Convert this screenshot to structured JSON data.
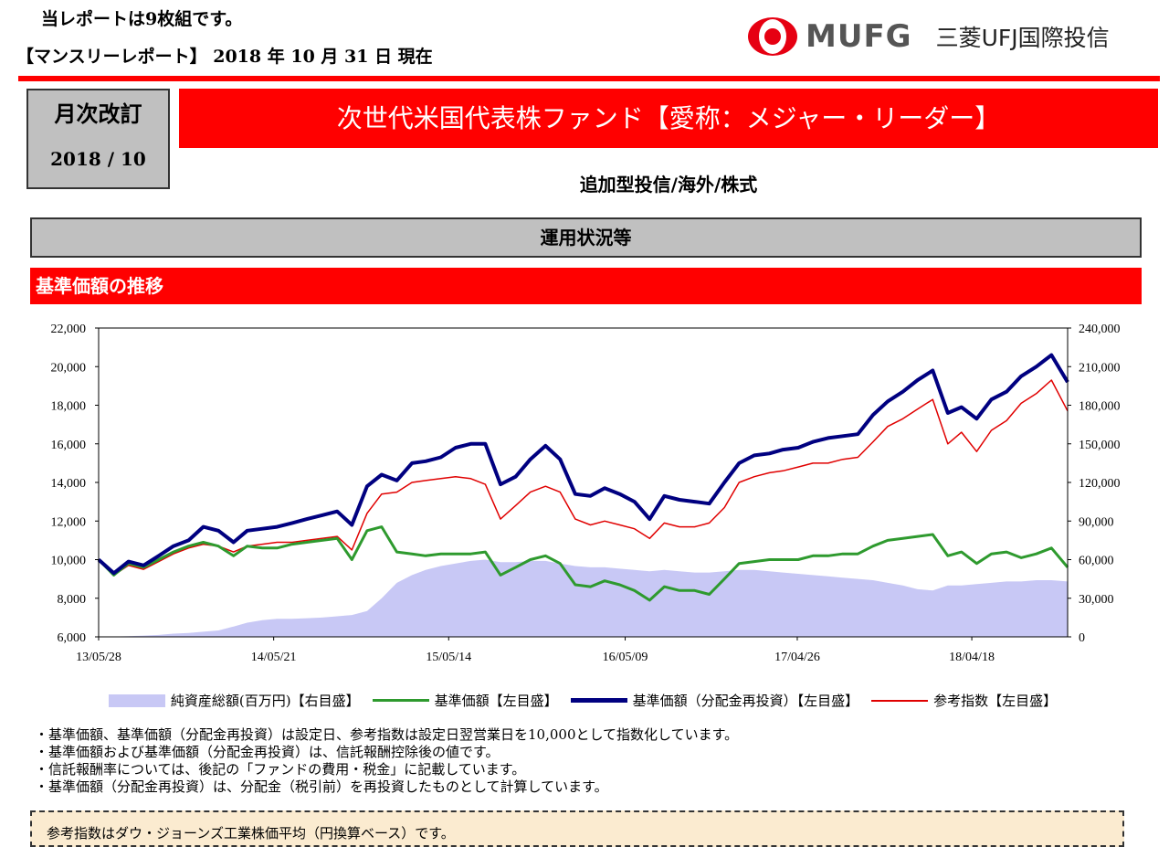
{
  "header": {
    "pages_note": "当レポートは9枚組です。",
    "report_date": "【マンスリーレポート】 2018 年 10 月 31 日 現在",
    "logo_text": "MUFG",
    "company": "三菱UFJ国際投信"
  },
  "revision": {
    "label": "月次改訂",
    "period": "2018 / 10"
  },
  "fund": {
    "title": "次世代米国代表株ファンド【愛称：メジャー・リーダー】",
    "category": "追加型投信/海外/株式"
  },
  "section": {
    "title": "運用状況等",
    "subtitle": "基準価額の推移"
  },
  "colors": {
    "net_assets": "#c8c8f5",
    "nav": "#2e9a2e",
    "nav_reinvested": "#000080",
    "reference": "#e00000",
    "accent": "#ff0000"
  },
  "chart_data": {
    "type": "line",
    "ylim_left": [
      6000,
      22000
    ],
    "ylim_right": [
      0,
      240000
    ],
    "yticks_left": [
      "6,000",
      "8,000",
      "10,000",
      "12,000",
      "14,000",
      "16,000",
      "18,000",
      "20,000",
      "22,000"
    ],
    "yticks_right": [
      "0",
      "30,000",
      "60,000",
      "90,000",
      "120,000",
      "150,000",
      "180,000",
      "210,000",
      "240,000"
    ],
    "xticks": [
      "13/05/28",
      "14/05/21",
      "15/05/14",
      "16/05/09",
      "17/04/26",
      "18/04/18"
    ],
    "x": [
      "2013-05",
      "2013-06",
      "2013-07",
      "2013-08",
      "2013-09",
      "2013-10",
      "2013-11",
      "2013-12",
      "2014-01",
      "2014-02",
      "2014-03",
      "2014-04",
      "2014-05",
      "2014-06",
      "2014-07",
      "2014-08",
      "2014-09",
      "2014-10",
      "2014-11",
      "2014-12",
      "2015-01",
      "2015-02",
      "2015-03",
      "2015-04",
      "2015-05",
      "2015-06",
      "2015-07",
      "2015-08",
      "2015-09",
      "2015-10",
      "2015-11",
      "2015-12",
      "2016-01",
      "2016-02",
      "2016-03",
      "2016-04",
      "2016-05",
      "2016-06",
      "2016-07",
      "2016-08",
      "2016-09",
      "2016-10",
      "2016-11",
      "2016-12",
      "2017-01",
      "2017-02",
      "2017-03",
      "2017-04",
      "2017-05",
      "2017-06",
      "2017-07",
      "2017-08",
      "2017-09",
      "2017-10",
      "2017-11",
      "2017-12",
      "2018-01",
      "2018-02",
      "2018-03",
      "2018-04",
      "2018-05",
      "2018-06",
      "2018-07",
      "2018-08",
      "2018-09",
      "2018-10"
    ],
    "series": [
      {
        "name": "純資産総額(百万円)【右目盛】",
        "axis": "right",
        "kind": "area",
        "values": [
          0,
          200,
          500,
          1000,
          1500,
          2500,
          3000,
          4000,
          5000,
          8000,
          11000,
          13000,
          14000,
          14000,
          14500,
          15000,
          16000,
          17000,
          20000,
          30000,
          42000,
          48000,
          52000,
          55000,
          57000,
          59000,
          60000,
          58000,
          58000,
          59000,
          59000,
          57000,
          55000,
          54000,
          54000,
          53000,
          52000,
          51000,
          52000,
          51000,
          50000,
          50000,
          51000,
          52000,
          52000,
          51000,
          50000,
          49000,
          48000,
          47000,
          46000,
          45000,
          44000,
          42000,
          40000,
          37000,
          36000,
          40000,
          40000,
          41000,
          42000,
          43000,
          43000,
          44000,
          44000,
          43000
        ]
      },
      {
        "name": "基準価額【左目盛】",
        "axis": "left",
        "kind": "line",
        "values": [
          10000,
          9200,
          9800,
          9600,
          10000,
          10400,
          10700,
          10900,
          10700,
          10200,
          10700,
          10600,
          10600,
          10800,
          10900,
          11000,
          11100,
          10000,
          11500,
          11700,
          10400,
          10300,
          10200,
          10300,
          10300,
          10300,
          10400,
          9200,
          9600,
          10000,
          10200,
          9800,
          8700,
          8600,
          8900,
          8700,
          8400,
          7900,
          8600,
          8400,
          8400,
          8200,
          9000,
          9800,
          9900,
          10000,
          10000,
          10000,
          10200,
          10200,
          10300,
          10300,
          10700,
          11000,
          11100,
          11200,
          11300,
          10200,
          10400,
          9800,
          10300,
          10400,
          10100,
          10300,
          10600,
          9600
        ]
      },
      {
        "name": "基準価額（分配金再投資）【左目盛】",
        "axis": "left",
        "kind": "line",
        "values": [
          10000,
          9300,
          9900,
          9700,
          10200,
          10700,
          11000,
          11700,
          11500,
          10900,
          11500,
          11600,
          11700,
          11900,
          12100,
          12300,
          12500,
          11800,
          13800,
          14400,
          14100,
          15000,
          15100,
          15300,
          15800,
          16000,
          16000,
          13900,
          14300,
          15200,
          15900,
          15200,
          13400,
          13300,
          13700,
          13400,
          13000,
          12100,
          13300,
          13100,
          13000,
          12900,
          14000,
          15000,
          15400,
          15500,
          15700,
          15800,
          16100,
          16300,
          16400,
          16500,
          17500,
          18200,
          18700,
          19300,
          19800,
          17600,
          17900,
          17300,
          18300,
          18700,
          19500,
          20000,
          20600,
          19200
        ]
      },
      {
        "name": "参考指数【左目盛】",
        "axis": "left",
        "kind": "line",
        "values": [
          10000,
          9200,
          9700,
          9500,
          9900,
          10300,
          10600,
          10800,
          10700,
          10400,
          10700,
          10800,
          10900,
          10900,
          11000,
          11100,
          11200,
          10500,
          12400,
          13400,
          13500,
          14000,
          14100,
          14200,
          14300,
          14200,
          13900,
          12100,
          12800,
          13500,
          13800,
          13500,
          12100,
          11800,
          12000,
          11800,
          11600,
          11100,
          11900,
          11700,
          11700,
          11900,
          12700,
          14000,
          14300,
          14500,
          14600,
          14800,
          15000,
          15000,
          15200,
          15300,
          16100,
          16900,
          17300,
          17800,
          18300,
          16000,
          16600,
          15600,
          16700,
          17200,
          18100,
          18600,
          19300,
          17700
        ]
      }
    ],
    "legend": "bottom"
  },
  "notes": [
    "・基準価額、基準価額（分配金再投資）は設定日、参考指数は設定日翌営業日を10,000として指数化しています。",
    "・基準価額および基準価額（分配金再投資）は、信託報酬控除後の値です。",
    "・信託報酬率については、後記の「ファンドの費用・税金」に記載しています。",
    "・基準価額（分配金再投資）は、分配金（税引前）を再投資したものとして計算しています。"
  ],
  "reference_note": "参考指数はダウ・ジョーンズ工業株価平均（円換算ベース）です。"
}
